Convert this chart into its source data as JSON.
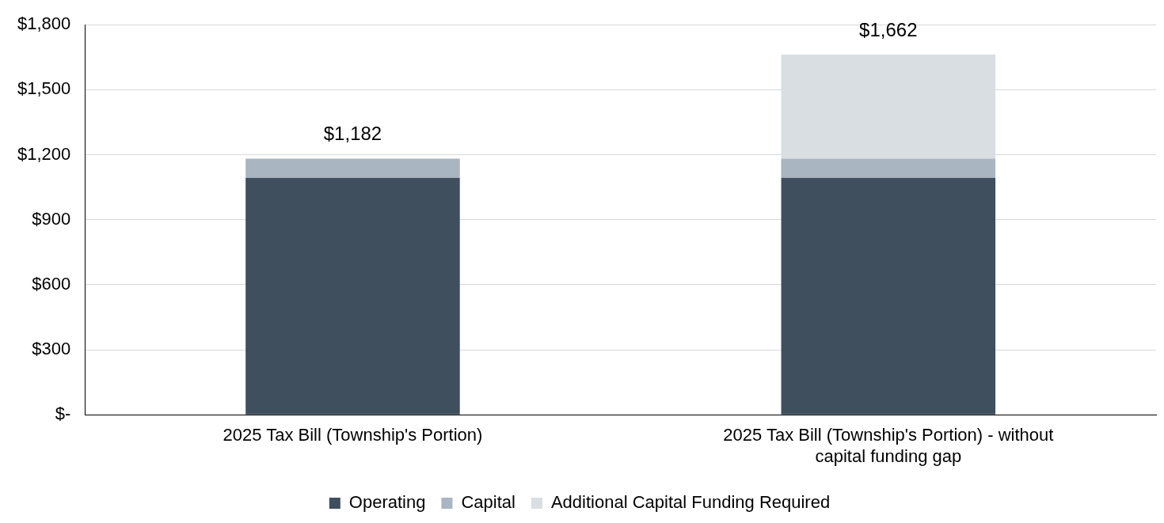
{
  "chart_data": {
    "type": "bar",
    "stacked": true,
    "categories": [
      "2025 Tax Bill (Township's Portion)",
      "2025 Tax Bill (Township's Portion) - without capital funding gap"
    ],
    "series": [
      {
        "name": "Operating",
        "color": "#404f5e",
        "values": [
          1093,
          1093
        ]
      },
      {
        "name": "Capital",
        "color": "#a9b5c1",
        "values": [
          89,
          89
        ]
      },
      {
        "name": "Additional Capital Funding Required",
        "color": "#d9dee3",
        "values": [
          null,
          480
        ]
      }
    ],
    "ylim": [
      0,
      1800
    ],
    "yticks": [
      {
        "value": 0,
        "label": "$-"
      },
      {
        "value": 300,
        "label": "$300"
      },
      {
        "value": 600,
        "label": "$600"
      },
      {
        "value": 900,
        "label": "$900"
      },
      {
        "value": 1200,
        "label": "$1,200"
      },
      {
        "value": 1500,
        "label": "$1,500"
      },
      {
        "value": 1800,
        "label": "$1,800"
      }
    ],
    "totals": [
      "$1,182",
      "$1,662"
    ],
    "grid": "y",
    "legend": "bottom"
  }
}
